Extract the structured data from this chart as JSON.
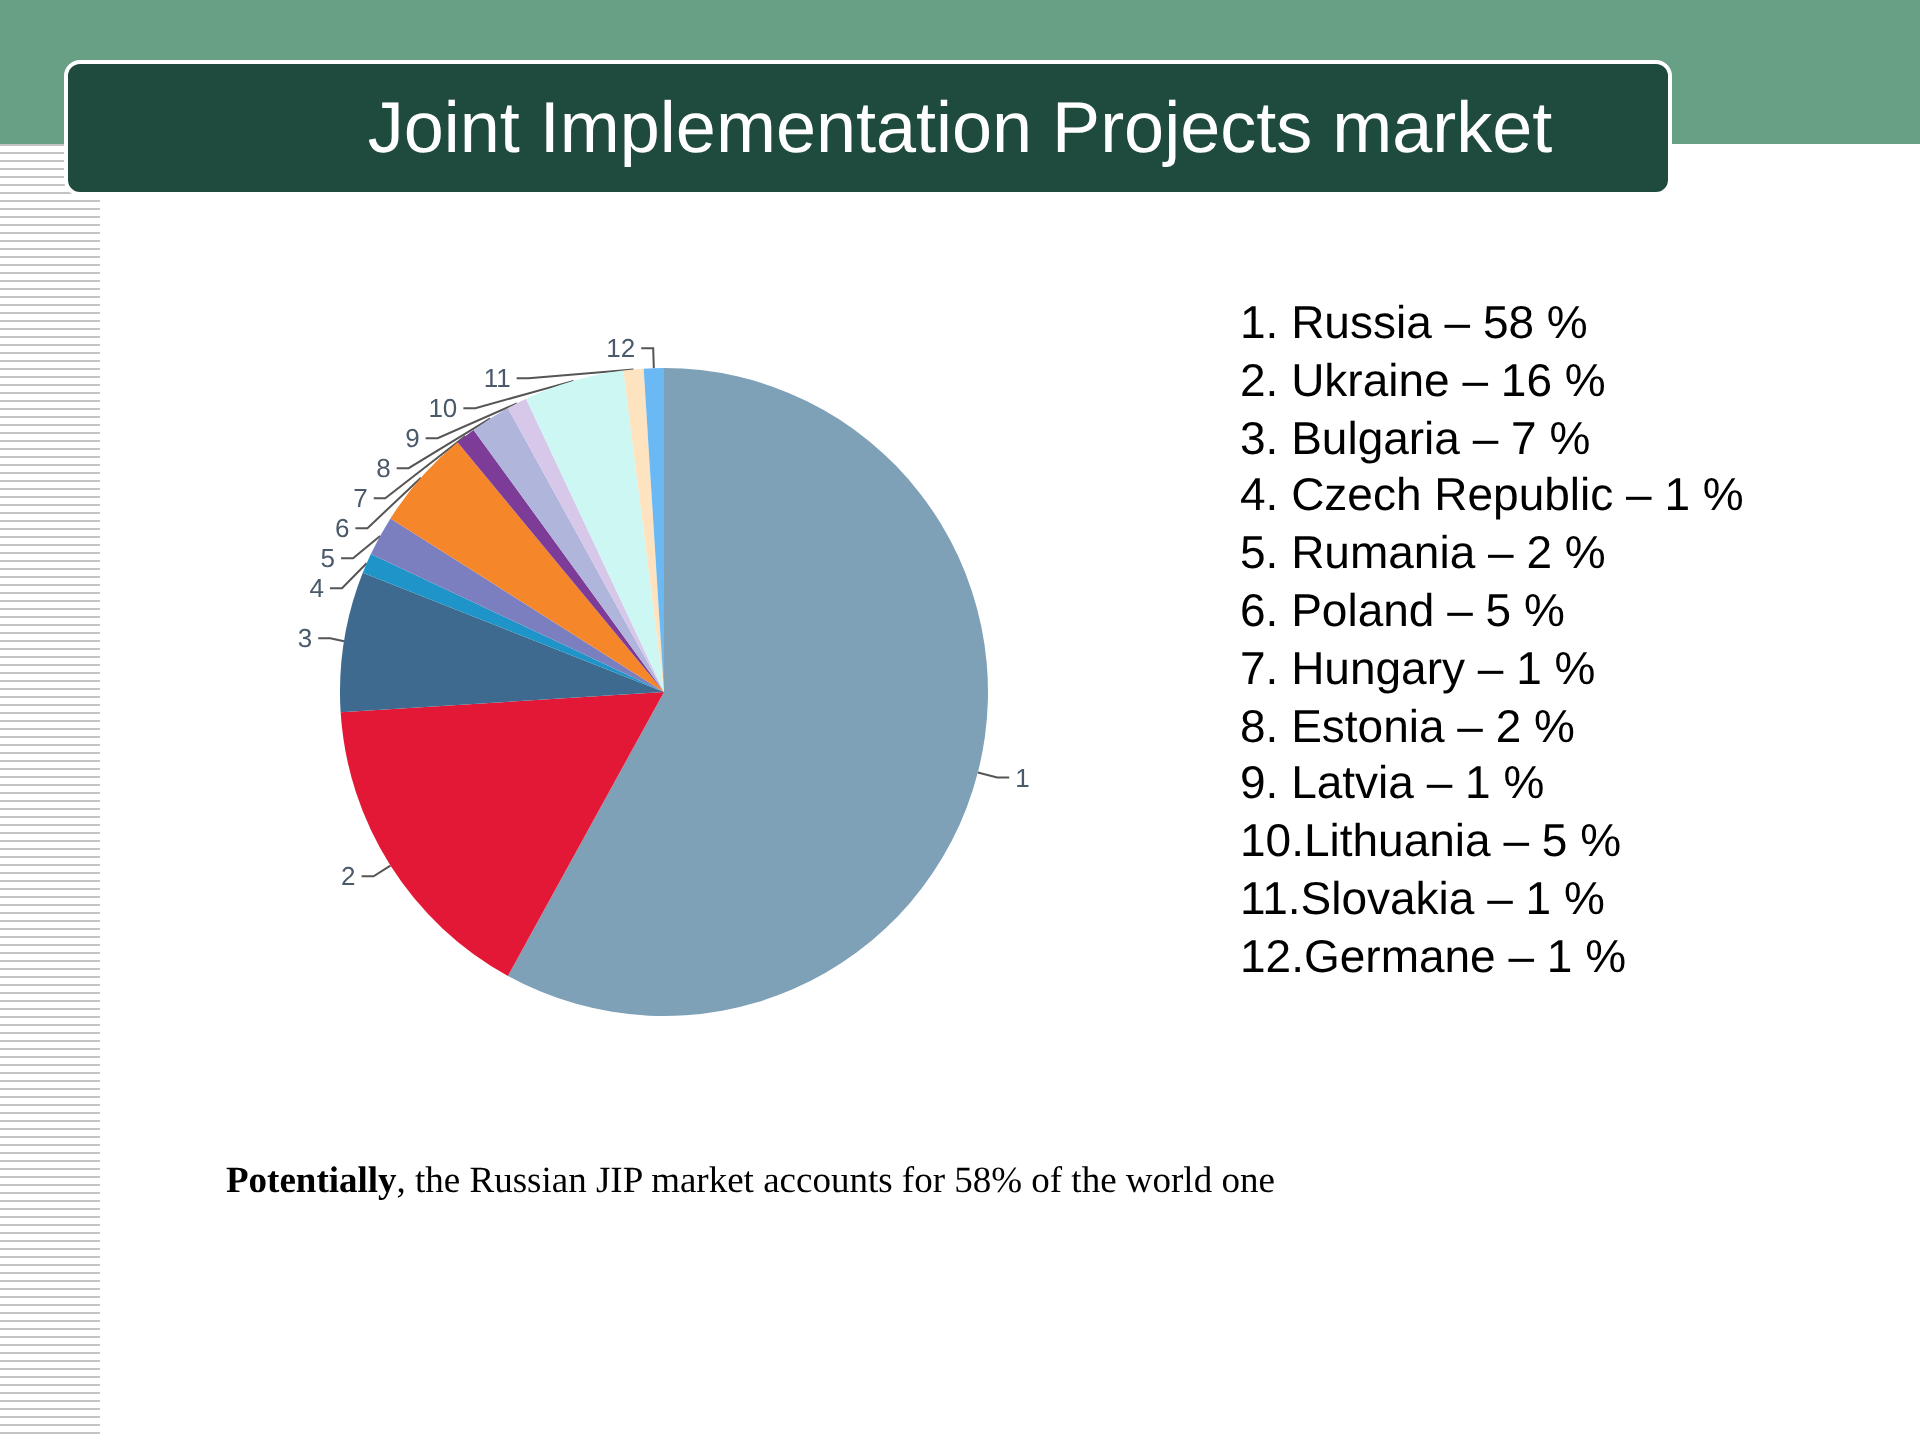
{
  "chart_data": {
    "type": "pie",
    "title": "Joint Implementation Projects market",
    "categories": [
      "1",
      "2",
      "3",
      "4",
      "5",
      "6",
      "7",
      "8",
      "9",
      "10",
      "11",
      "12"
    ],
    "values": [
      58,
      16,
      7,
      1,
      2,
      5,
      1,
      2,
      1,
      5,
      1,
      1
    ],
    "colors": [
      "#7fa1b7",
      "#e31837",
      "#3d6a8e",
      "#1e94c8",
      "#7b7fbf",
      "#f5862a",
      "#7d3c98",
      "#b0b5dc",
      "#d7c8ea",
      "#ccf7f3",
      "#fde3c0",
      "#6ab8f4"
    ],
    "annotations": [
      "1. Russia – 58 %",
      "2. Ukraine – 16 %",
      "3. Bulgaria – 7 %",
      "4. Czech Republic – 1 %",
      "5. Rumania – 2 %",
      "6. Poland – 5 %",
      "7. Hungary – 1 %",
      "8. Estonia – 2 %",
      "9. Latvia – 1 %",
      "10.Lithuania – 5 %",
      "11.Slovakia – 1 %",
      "12.Germane – 1 %",
      "Potentially, the Russian JIP market accounts for 58% of the world one"
    ]
  }
}
